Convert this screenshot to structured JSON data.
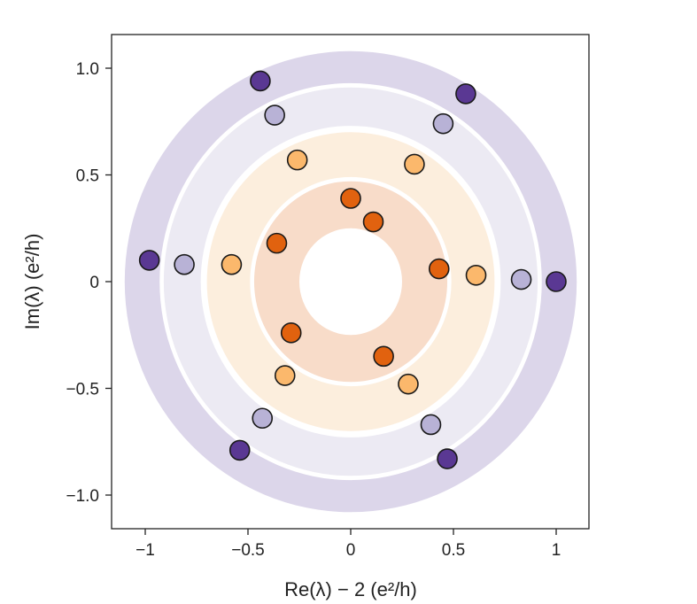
{
  "chart_data": {
    "type": "scatter",
    "xlabel": "Re(λ) − 2 (e²/h)",
    "ylabel": "Im(λ) (e²/h)",
    "xlim": [
      -1.18,
      1.16
    ],
    "ylim": [
      -1.16,
      1.16
    ],
    "x_ticks": [
      -1,
      -0.5,
      0,
      0.5,
      1
    ],
    "x_tick_labels": [
      "−1",
      "−0.5",
      "0",
      "0.5",
      "1"
    ],
    "y_ticks": [
      1.0,
      0.5,
      0,
      -0.5,
      -1.0
    ],
    "y_tick_labels": [
      "1.0",
      "0.5",
      "0",
      "−0.5",
      "−1.0"
    ],
    "grid": false,
    "bands": [
      {
        "inner": 0.93,
        "outer_x": 1.1,
        "outer_y": 1.08,
        "color": "#dcd6ea"
      },
      {
        "inner": 0.73,
        "outer": 0.91,
        "color": "#eceaf3"
      },
      {
        "inner": 0.49,
        "outer": 0.7,
        "color": "#fceedd"
      },
      {
        "inner": 0.25,
        "outer": 0.47,
        "color": "#f8dcc9"
      }
    ],
    "series": [
      {
        "color": "#5a3893",
        "points": [
          [
            -0.44,
            0.94
          ],
          [
            0.56,
            0.88
          ],
          [
            -0.98,
            0.1
          ],
          [
            1.0,
            0.0
          ],
          [
            -0.54,
            -0.79
          ],
          [
            0.47,
            -0.83
          ]
        ]
      },
      {
        "color": "#b8b2d6",
        "points": [
          [
            -0.37,
            0.78
          ],
          [
            0.45,
            0.74
          ],
          [
            -0.81,
            0.08
          ],
          [
            0.83,
            0.01
          ],
          [
            -0.43,
            -0.64
          ],
          [
            0.39,
            -0.67
          ]
        ]
      },
      {
        "color": "#fbb86c",
        "points": [
          [
            -0.26,
            0.57
          ],
          [
            0.31,
            0.55
          ],
          [
            -0.58,
            0.08
          ],
          [
            0.61,
            0.03
          ],
          [
            -0.32,
            -0.44
          ],
          [
            0.28,
            -0.48
          ]
        ]
      },
      {
        "color": "#e1620f",
        "points": [
          [
            0.0,
            0.39
          ],
          [
            0.11,
            0.28
          ],
          [
            -0.36,
            0.18
          ],
          [
            0.43,
            0.06
          ],
          [
            -0.29,
            -0.24
          ],
          [
            0.16,
            -0.35
          ]
        ]
      }
    ]
  }
}
